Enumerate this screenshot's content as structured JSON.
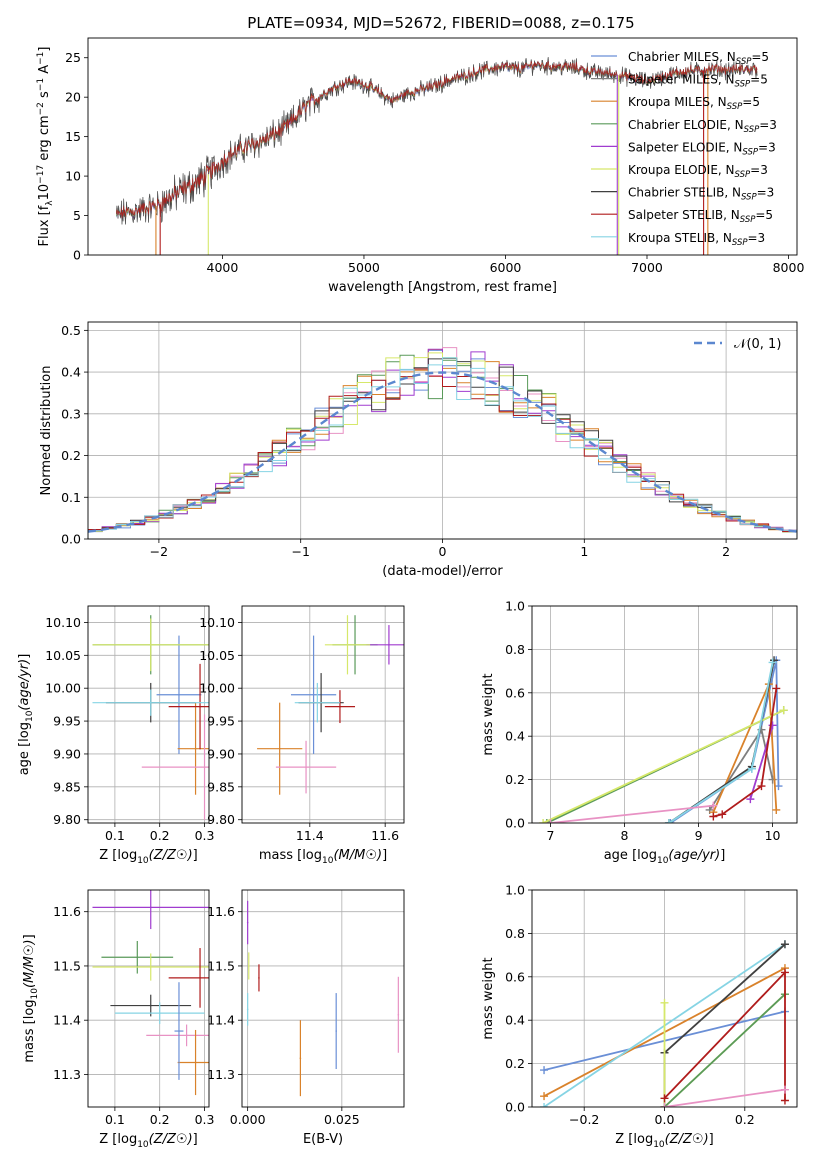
{
  "figure_title": "PLATE=0934, MJD=52672, FIBERID=0088, z=0.175",
  "series": [
    {
      "name": "Chabrier MILES, N_SSP=5",
      "label_main": "Chabrier MILES, N",
      "label_sub": "SSP",
      "label_tail": "=5",
      "color": "#6a8fd6"
    },
    {
      "name": "Salpeter MILES, N_SSP=5",
      "label_main": "Salpeter MILES, N",
      "label_sub": "SSP",
      "label_tail": "=5",
      "color": "#7f7f7f"
    },
    {
      "name": "Kroupa MILES, N_SSP=5",
      "label_main": "Kroupa MILES, N",
      "label_sub": "SSP",
      "label_tail": "=5",
      "color": "#d9822b"
    },
    {
      "name": "Chabrier ELODIE, N_SSP=3",
      "label_main": "Chabrier ELODIE, N",
      "label_sub": "SSP",
      "label_tail": "=3",
      "color": "#5a9a5a"
    },
    {
      "name": "Salpeter ELODIE, N_SSP=3",
      "label_main": "Salpeter ELODIE, N",
      "label_sub": "SSP",
      "label_tail": "=3",
      "color": "#a03ccf"
    },
    {
      "name": "Kroupa ELODIE, N_SSP=3",
      "label_main": "Kroupa ELODIE, N",
      "label_sub": "SSP",
      "label_tail": "=3",
      "color": "#d6e86a"
    },
    {
      "name": "Chabrier STELIB, N_SSP=3",
      "label_main": "Chabrier STELIB, N",
      "label_sub": "SSP",
      "label_tail": "=3",
      "color": "#404040"
    },
    {
      "name": "Salpeter STELIB, N_SSP=5",
      "label_main": "Salpeter STELIB, N",
      "label_sub": "SSP",
      "label_tail": "=5",
      "color": "#b01c1c"
    },
    {
      "name": "Kroupa STELIB, N_SSP=3",
      "label_main": "Kroupa STELIB, N",
      "label_sub": "SSP",
      "label_tail": "=3",
      "color": "#86d4e4"
    }
  ],
  "chart_data": [
    {
      "id": "spectrum",
      "type": "line",
      "title": "PLATE=0934, MJD=52672, FIBERID=0088, z=0.175",
      "xlabel": "wavelength [Angstrom, rest frame]",
      "ylabel": "Flux [f_λ 10^-17 erg cm^-2 s^-1 A^-1]",
      "ylabel_parts": {
        "a": "Flux [f",
        "b": "λ",
        "c": "10",
        "d": "−17",
        "e": " erg cm",
        "f": "−2",
        "g": " s",
        "h": "−1",
        "i": " A",
        "j": "−1",
        "k": "]"
      },
      "xlim": [
        3050,
        8060
      ],
      "ylim": [
        0,
        27.5
      ],
      "xticks": [
        4000,
        5000,
        6000,
        7000,
        8000
      ],
      "yticks": [
        0,
        5,
        10,
        15,
        20,
        25
      ],
      "legend_placement": "right",
      "continuum": [
        [
          3250,
          5.0
        ],
        [
          3400,
          5.6
        ],
        [
          3550,
          6.3
        ],
        [
          3700,
          8.0
        ],
        [
          3850,
          9.5
        ],
        [
          3950,
          11.0
        ],
        [
          4050,
          12.6
        ],
        [
          4150,
          13.5
        ],
        [
          4300,
          14.6
        ],
        [
          4400,
          15.5
        ],
        [
          4500,
          17.0
        ],
        [
          4600,
          19.0
        ],
        [
          4700,
          20.2
        ],
        [
          4800,
          21.3
        ],
        [
          4900,
          22.0
        ],
        [
          5000,
          21.6
        ],
        [
          5100,
          20.6
        ],
        [
          5200,
          19.5
        ],
        [
          5300,
          20.4
        ],
        [
          5400,
          20.9
        ],
        [
          5500,
          21.4
        ],
        [
          5600,
          22.1
        ],
        [
          5700,
          22.6
        ],
        [
          5800,
          23.2
        ],
        [
          5900,
          23.6
        ],
        [
          6000,
          23.8
        ],
        [
          6100,
          23.5
        ],
        [
          6200,
          24.1
        ],
        [
          6300,
          23.9
        ],
        [
          6400,
          23.8
        ],
        [
          6500,
          23.7
        ],
        [
          6600,
          23.2
        ],
        [
          6700,
          23.0
        ],
        [
          6800,
          22.8
        ],
        [
          6900,
          22.4
        ],
        [
          7000,
          22.0
        ],
        [
          7100,
          22.5
        ],
        [
          7200,
          23.0
        ],
        [
          7300,
          23.3
        ],
        [
          7400,
          23.4
        ],
        [
          7500,
          23.5
        ],
        [
          7600,
          23.4
        ],
        [
          7700,
          23.5
        ],
        [
          7780,
          23.6
        ]
      ],
      "edges": [
        {
          "series": 2,
          "x": 3530,
          "side": "start"
        },
        {
          "series": 7,
          "x": 3560,
          "side": "start"
        },
        {
          "series": 5,
          "x": 3900,
          "side": "start"
        },
        {
          "series": 4,
          "x": 6790,
          "side": "end"
        },
        {
          "series": 5,
          "x": 6800,
          "side": "end"
        },
        {
          "series": 7,
          "x": 7400,
          "side": "end"
        },
        {
          "series": 2,
          "x": 7430,
          "side": "end"
        }
      ]
    },
    {
      "id": "residuals",
      "type": "area",
      "xlabel": "(data-model)/error",
      "ylabel": "Normed distribution",
      "xlim": [
        -2.5,
        2.5
      ],
      "ylim": [
        0,
        0.52
      ],
      "xticks": [
        -2,
        -1,
        0,
        1,
        2
      ],
      "yticks": [
        0.0,
        0.1,
        0.2,
        0.3,
        0.4,
        0.5
      ],
      "grid": true,
      "bin_width": 0.1,
      "reference_curve": {
        "name": "N(0,1)",
        "label_script": "𝒩(0, 1)",
        "mean": 0,
        "sigma": 1,
        "style": "dashed",
        "color": "#5b87cf"
      },
      "legend_placement": "top-right"
    },
    {
      "id": "age_vs_Z",
      "type": "scatter",
      "xlabel": "Z [log10(Z/Z☉)]",
      "ylabel": "age [log10(age/yr)]",
      "xlim": [
        0.04,
        0.31
      ],
      "ylim": [
        9.795,
        10.125
      ],
      "xticks": [
        0.1,
        0.2,
        0.3
      ],
      "yticks": [
        9.8,
        9.85,
        9.9,
        9.95,
        10.0,
        10.05,
        10.1
      ],
      "grid": true,
      "points": [
        {
          "series": 0,
          "x": 0.243,
          "y": 9.99,
          "xerr": 0.05,
          "yerr": 0.09
        },
        {
          "series": 2,
          "x": 0.28,
          "y": 9.908,
          "xerr": 0.04,
          "yerr": 0.07
        },
        {
          "series": 3,
          "x": 0.18,
          "y": 10.066,
          "xerr": 0.13,
          "yerr": 0.045
        },
        {
          "series": 5,
          "x": 0.18,
          "y": 10.066,
          "xerr": 0.13,
          "yerr": 0.04
        },
        {
          "series": 6,
          "x": 0.18,
          "y": 9.978,
          "xerr": 0.1,
          "yerr": 0.03
        },
        {
          "series": 7,
          "x": 0.29,
          "y": 9.972,
          "xerr": 0.07,
          "yerr": 0.065
        },
        {
          "series": 8,
          "x": 0.18,
          "y": 9.978,
          "xerr": 0.13,
          "yerr": 0.02
        },
        {
          "series": 1,
          "x": 0.3,
          "y": 9.88,
          "xerr": 0.14,
          "yerr": 0.08
        }
      ]
    },
    {
      "id": "age_vs_mass",
      "type": "scatter",
      "xlabel": "mass [log10(M/M☉)]",
      "ylabel": "",
      "xlim": [
        11.22,
        11.65
      ],
      "ylim": [
        9.795,
        10.125
      ],
      "xticks": [
        11.4,
        11.6
      ],
      "yticks": [
        9.8,
        9.85,
        9.9,
        9.95,
        10.0,
        10.05,
        10.1
      ],
      "grid": true,
      "points": [
        {
          "series": 0,
          "x": 11.41,
          "y": 9.99,
          "xerr": 0.06,
          "yerr": 0.09
        },
        {
          "series": 2,
          "x": 11.32,
          "y": 9.908,
          "xerr": 0.06,
          "yerr": 0.07
        },
        {
          "series": 3,
          "x": 11.52,
          "y": 10.066,
          "xerr": 0.06,
          "yerr": 0.045
        },
        {
          "series": 4,
          "x": 11.61,
          "y": 10.066,
          "xerr": 0.06,
          "yerr": 0.03
        },
        {
          "series": 5,
          "x": 11.5,
          "y": 10.066,
          "xerr": 0.06,
          "yerr": 0.045
        },
        {
          "series": 6,
          "x": 11.43,
          "y": 9.978,
          "xerr": 0.06,
          "yerr": 0.045
        },
        {
          "series": 7,
          "x": 11.48,
          "y": 9.972,
          "xerr": 0.04,
          "yerr": 0.025
        },
        {
          "series": 8,
          "x": 11.42,
          "y": 9.978,
          "xerr": 0.06,
          "yerr": 0.03
        },
        {
          "series": 1,
          "x": 11.39,
          "y": 9.88,
          "xerr": 0.08,
          "yerr": 0.04
        }
      ]
    },
    {
      "id": "weight_vs_age",
      "type": "line",
      "xlabel": "age [log10(age/yr)]",
      "ylabel": "mass weight",
      "xlim": [
        6.75,
        10.33
      ],
      "ylim": [
        0,
        1.0
      ],
      "xticks": [
        7,
        8,
        9,
        10
      ],
      "yticks": [
        0.0,
        0.2,
        0.4,
        0.6,
        0.8,
        1.0
      ],
      "grid": true,
      "series_points": [
        {
          "series": 0,
          "points": [
            [
              8.62,
              0.0
            ],
            [
              9.72,
              0.25
            ],
            [
              10.05,
              0.75
            ],
            [
              10.08,
              0.17
            ]
          ]
        },
        {
          "series": 1,
          "points": [
            [
              9.15,
              0.06
            ],
            [
              9.85,
              0.43
            ],
            [
              10.0,
              0.2
            ]
          ]
        },
        {
          "series": 2,
          "points": [
            [
              9.2,
              0.05
            ],
            [
              9.95,
              0.64
            ],
            [
              10.05,
              0.06
            ]
          ]
        },
        {
          "series": 3,
          "points": [
            [
              6.95,
              0.0
            ],
            [
              10.15,
              0.52
            ]
          ]
        },
        {
          "series": 4,
          "points": [
            [
              9.7,
              0.11
            ],
            [
              10.0,
              0.45
            ]
          ]
        },
        {
          "series": 5,
          "points": [
            [
              6.9,
              0.0
            ],
            [
              10.15,
              0.52
            ]
          ]
        },
        {
          "series": 6,
          "points": [
            [
              8.6,
              0.0
            ],
            [
              9.72,
              0.26
            ],
            [
              10.02,
              0.75
            ]
          ]
        },
        {
          "series": 7,
          "points": [
            [
              9.2,
              0.03
            ],
            [
              9.32,
              0.04
            ],
            [
              9.85,
              0.17
            ],
            [
              10.05,
              0.62
            ]
          ]
        },
        {
          "series": 8,
          "points": [
            [
              8.6,
              0.0
            ],
            [
              9.72,
              0.25
            ],
            [
              10.0,
              0.74
            ]
          ]
        },
        {
          "series": 1,
          "points": [
            [
              7.0,
              0.0
            ],
            [
              9.2,
              0.08
            ]
          ],
          "color_override": "#e892c4"
        }
      ]
    },
    {
      "id": "mass_vs_Z",
      "type": "scatter",
      "xlabel": "Z [log10(Z/Z☉)]",
      "ylabel": "mass [log10(M/M☉)]",
      "xlim": [
        0.04,
        0.31
      ],
      "ylim": [
        11.24,
        11.64
      ],
      "xticks": [
        0.1,
        0.2,
        0.3
      ],
      "yticks": [
        11.3,
        11.4,
        11.5,
        11.6
      ],
      "grid": true,
      "points": [
        {
          "series": 4,
          "x": 0.18,
          "y": 11.608,
          "xerr": 0.13,
          "yerr": 0.04
        },
        {
          "series": 3,
          "x": 0.15,
          "y": 11.516,
          "xerr": 0.08,
          "yerr": 0.03
        },
        {
          "series": 5,
          "x": 0.18,
          "y": 11.498,
          "xerr": 0.13,
          "yerr": 0.025
        },
        {
          "series": 7,
          "x": 0.29,
          "y": 11.478,
          "xerr": 0.07,
          "yerr": 0.055
        },
        {
          "series": 6,
          "x": 0.18,
          "y": 11.427,
          "xerr": 0.09,
          "yerr": 0.02
        },
        {
          "series": 8,
          "x": 0.2,
          "y": 11.413,
          "xerr": 0.1,
          "yerr": 0.02
        },
        {
          "series": 1,
          "x": 0.26,
          "y": 11.372,
          "xerr": 0.09,
          "yerr": 0.02
        },
        {
          "series": 2,
          "x": 0.28,
          "y": 11.322,
          "xerr": 0.04,
          "yerr": 0.06
        },
        {
          "series": 0,
          "x": 0.243,
          "y": 11.38,
          "xerr": 0.01,
          "yerr": 0.09
        }
      ]
    },
    {
      "id": "mass_vs_EBV",
      "type": "scatter",
      "xlabel": "E(B-V)",
      "ylabel": "",
      "xlim": [
        -0.0015,
        0.0415
      ],
      "ylim": [
        11.24,
        11.64
      ],
      "xticks": [
        0.0,
        0.025
      ],
      "yticks": [
        11.3,
        11.4,
        11.5,
        11.6
      ],
      "grid": true,
      "points": [
        {
          "series": 4,
          "x": 0.0,
          "y": 11.58,
          "xerr": 0,
          "yerr": 0.04
        },
        {
          "series": 5,
          "x": 0.0003,
          "y": 11.5,
          "xerr": 0,
          "yerr": 0.025
        },
        {
          "series": 7,
          "x": 0.003,
          "y": 11.478,
          "xerr": 0,
          "yerr": 0.025
        },
        {
          "series": 8,
          "x": 0.0,
          "y": 11.42,
          "xerr": 0,
          "yerr": 0.03
        },
        {
          "series": 2,
          "x": 0.014,
          "y": 11.33,
          "xerr": 0,
          "yerr": 0.07
        },
        {
          "series": 0,
          "x": 0.0235,
          "y": 11.38,
          "xerr": 0,
          "yerr": 0.07
        },
        {
          "series": 1,
          "x": 0.04,
          "y": 11.41,
          "xerr": 0,
          "yerr": 0.07
        }
      ]
    },
    {
      "id": "weight_vs_Z",
      "type": "line",
      "xlabel": "Z [log10(Z/Z☉)]",
      "ylabel": "mass weight",
      "xlim": [
        -0.33,
        0.33
      ],
      "ylim": [
        0,
        1.0
      ],
      "xticks": [
        -0.2,
        0.0,
        0.2
      ],
      "yticks": [
        0.0,
        0.2,
        0.4,
        0.6,
        0.8,
        1.0
      ],
      "grid": true,
      "series_points": [
        {
          "series": 0,
          "points": [
            [
              -0.3,
              0.17
            ],
            [
              0.3,
              0.44
            ]
          ]
        },
        {
          "series": 2,
          "points": [
            [
              -0.3,
              0.05
            ],
            [
              0.3,
              0.64
            ]
          ]
        },
        {
          "series": 8,
          "points": [
            [
              -0.3,
              0.0
            ],
            [
              0.3,
              0.75
            ]
          ]
        },
        {
          "series": 6,
          "points": [
            [
              0.0,
              0.0
            ],
            [
              0.0,
              0.25
            ],
            [
              0.3,
              0.75
            ]
          ]
        },
        {
          "series": 5,
          "points": [
            [
              0.0,
              0.48
            ],
            [
              0.0,
              0.0
            ],
            [
              0.3,
              0.52
            ]
          ]
        },
        {
          "series": 3,
          "points": [
            [
              0.0,
              0.0
            ],
            [
              0.3,
              0.52
            ]
          ]
        },
        {
          "series": 7,
          "points": [
            [
              0.0,
              0.04
            ],
            [
              0.3,
              0.62
            ],
            [
              0.3,
              0.03
            ]
          ]
        },
        {
          "series": 1,
          "points": [
            [
              0.0,
              0.0
            ],
            [
              0.3,
              0.08
            ]
          ],
          "color_override": "#e892c4"
        }
      ]
    }
  ]
}
